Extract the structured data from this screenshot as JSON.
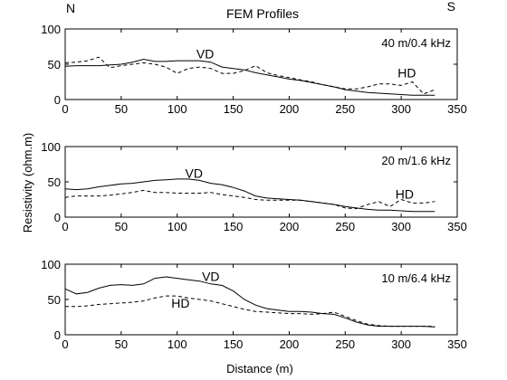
{
  "figure": {
    "title": "FEM Profiles",
    "corner_left": "N",
    "corner_right": "S",
    "ylabel": "Resistivity (ohm.m)",
    "xlabel": "Distance (m)"
  },
  "chart_data": [
    {
      "type": "line",
      "annotation": "40 m/0.4 kHz",
      "xlim": [
        0,
        350
      ],
      "ylim": [
        0,
        100
      ],
      "xticks": [
        0,
        50,
        100,
        150,
        200,
        250,
        300,
        350
      ],
      "yticks": [
        0,
        50,
        100
      ],
      "grid": false,
      "series": [
        {
          "name": "VD",
          "style": "solid",
          "label_at": [
            125,
            65
          ],
          "x": [
            0,
            10,
            20,
            30,
            40,
            50,
            60,
            70,
            80,
            90,
            100,
            110,
            120,
            130,
            140,
            150,
            160,
            170,
            180,
            190,
            200,
            210,
            220,
            230,
            240,
            250,
            260,
            270,
            280,
            290,
            300,
            310,
            320,
            330
          ],
          "y": [
            47,
            48,
            48,
            48,
            49,
            50,
            53,
            57,
            54,
            54,
            55,
            55,
            55,
            53,
            46,
            44,
            42,
            38,
            35,
            32,
            29,
            27,
            24,
            21,
            18,
            14,
            12,
            10,
            9,
            8,
            7,
            6,
            6,
            6
          ]
        },
        {
          "name": "HD",
          "style": "dashed",
          "label_at": [
            305,
            38
          ],
          "x": [
            0,
            10,
            20,
            30,
            40,
            50,
            60,
            70,
            80,
            90,
            100,
            110,
            120,
            130,
            140,
            150,
            160,
            170,
            180,
            190,
            200,
            210,
            220,
            230,
            240,
            250,
            260,
            270,
            280,
            290,
            300,
            310,
            320,
            330
          ],
          "y": [
            52,
            53,
            55,
            60,
            45,
            48,
            50,
            52,
            50,
            46,
            37,
            44,
            46,
            44,
            37,
            37,
            41,
            48,
            38,
            34,
            31,
            28,
            25,
            21,
            18,
            15,
            15,
            18,
            22,
            22,
            20,
            25,
            8,
            14
          ]
        }
      ]
    },
    {
      "type": "line",
      "annotation": "20 m/1.6 kHz",
      "xlim": [
        0,
        350
      ],
      "ylim": [
        0,
        100
      ],
      "xticks": [
        0,
        50,
        100,
        150,
        200,
        250,
        300,
        350
      ],
      "yticks": [
        0,
        50,
        100
      ],
      "grid": false,
      "series": [
        {
          "name": "VD",
          "style": "solid",
          "label_at": [
            115,
            62
          ],
          "x": [
            0,
            10,
            20,
            30,
            40,
            50,
            60,
            70,
            80,
            90,
            100,
            110,
            120,
            130,
            140,
            150,
            160,
            170,
            180,
            190,
            200,
            210,
            220,
            230,
            240,
            250,
            260,
            270,
            280,
            290,
            300,
            310,
            320,
            330
          ],
          "y": [
            40,
            39,
            40,
            43,
            45,
            47,
            48,
            50,
            52,
            53,
            54,
            54,
            52,
            48,
            46,
            42,
            37,
            30,
            27,
            26,
            25,
            24,
            22,
            20,
            18,
            15,
            13,
            11,
            10,
            10,
            9,
            8,
            8,
            8
          ]
        },
        {
          "name": "HD",
          "style": "dashed",
          "label_at": [
            303,
            33
          ],
          "x": [
            0,
            10,
            20,
            30,
            40,
            50,
            60,
            70,
            80,
            90,
            100,
            110,
            120,
            130,
            140,
            150,
            160,
            170,
            180,
            190,
            200,
            210,
            220,
            230,
            240,
            250,
            260,
            270,
            280,
            290,
            300,
            310,
            320,
            330
          ],
          "y": [
            28,
            30,
            30,
            30,
            31,
            33,
            35,
            38,
            35,
            35,
            34,
            34,
            34,
            35,
            32,
            30,
            28,
            25,
            24,
            24,
            24,
            24,
            22,
            20,
            18,
            13,
            12,
            18,
            22,
            15,
            25,
            20,
            20,
            22
          ]
        }
      ]
    },
    {
      "type": "line",
      "annotation": "10 m/6.4 kHz",
      "xlim": [
        0,
        350
      ],
      "ylim": [
        0,
        100
      ],
      "xticks": [
        0,
        50,
        100,
        150,
        200,
        250,
        300,
        350
      ],
      "yticks": [
        0,
        50,
        100
      ],
      "grid": false,
      "series": [
        {
          "name": "VD",
          "style": "solid",
          "label_at": [
            130,
            83
          ],
          "x": [
            0,
            10,
            20,
            30,
            40,
            50,
            60,
            70,
            80,
            90,
            100,
            110,
            120,
            130,
            140,
            150,
            160,
            170,
            180,
            190,
            200,
            210,
            220,
            230,
            240,
            250,
            260,
            270,
            280,
            290,
            300,
            310,
            320,
            330
          ],
          "y": [
            65,
            58,
            60,
            66,
            70,
            71,
            70,
            72,
            80,
            82,
            80,
            78,
            76,
            72,
            70,
            62,
            50,
            42,
            37,
            35,
            33,
            33,
            32,
            30,
            29,
            24,
            18,
            14,
            12,
            12,
            12,
            12,
            12,
            11
          ]
        },
        {
          "name": "HD",
          "style": "dashed",
          "label_at": [
            103,
            45
          ],
          "x": [
            0,
            10,
            20,
            30,
            40,
            50,
            60,
            70,
            80,
            90,
            100,
            110,
            120,
            130,
            140,
            150,
            160,
            170,
            180,
            190,
            200,
            210,
            220,
            230,
            240,
            250,
            260,
            270,
            280,
            290,
            300,
            310,
            320,
            330
          ],
          "y": [
            40,
            40,
            41,
            43,
            44,
            45,
            46,
            48,
            52,
            55,
            55,
            52,
            50,
            48,
            44,
            40,
            36,
            33,
            32,
            31,
            30,
            30,
            29,
            30,
            32,
            26,
            20,
            15,
            13,
            12,
            12,
            12,
            12,
            12
          ]
        }
      ]
    }
  ]
}
